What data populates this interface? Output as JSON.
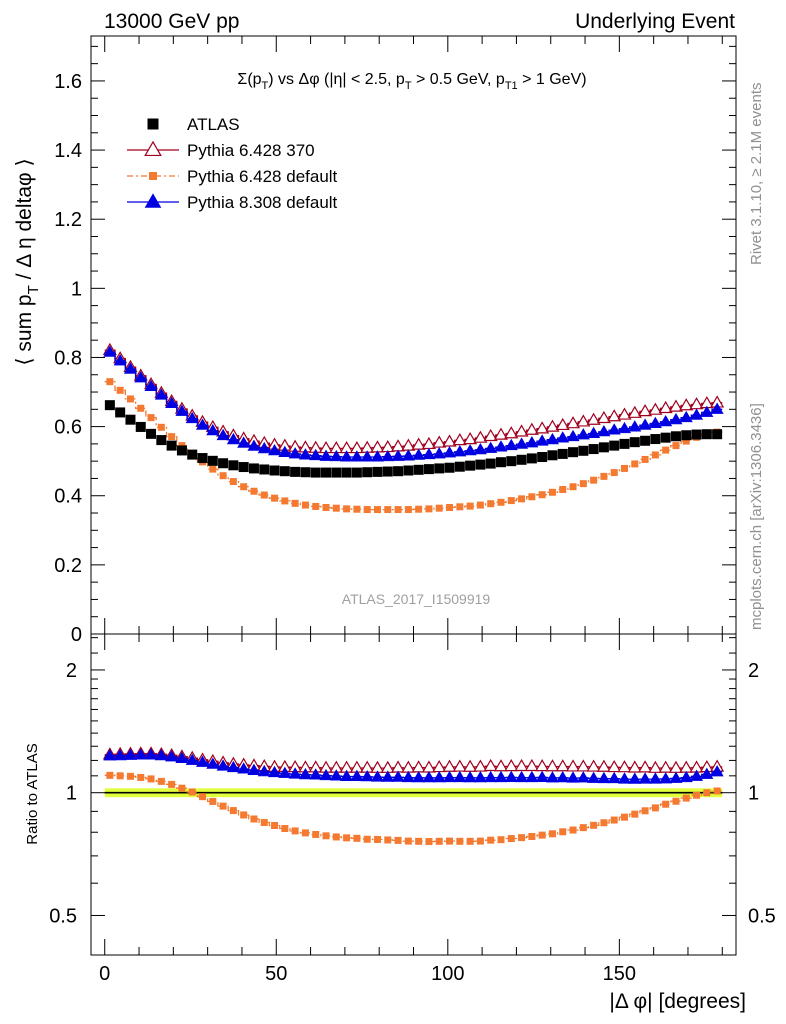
{
  "header": {
    "left": "13000 GeV pp",
    "right": "Underlying Event"
  },
  "side_labels": {
    "rivet": "Rivet 3.1.10, ≥ 2.1M events",
    "mcplots": "mcplots.cern.ch [arXiv:1306.3436]"
  },
  "watermark": "ATLAS_2017_I1509919",
  "chart_data": [
    {
      "type": "scatter",
      "panel": "main",
      "title_parts": [
        "Σ(p",
        "T",
        ") vs Δφ (|η| < 2.5, p",
        "T",
        " > 0.5 GeV, p",
        "T1",
        " > 1 GeV)"
      ],
      "ylabel_parts": [
        "⟨ sum p",
        "T",
        " / Δ η deltaφ ⟩"
      ],
      "xlim": [
        -4,
        184
      ],
      "ylim": [
        0,
        1.73
      ],
      "yticks": [
        0,
        0.2,
        0.4,
        0.6,
        0.8,
        1,
        1.2,
        1.4,
        1.6
      ],
      "ytick_labels": [
        "0",
        "0.2",
        "0.4",
        "0.6",
        "0.8",
        "1",
        "1.2",
        "1.4",
        "1.6"
      ],
      "legend_position": "top-left",
      "x": [
        1.5,
        4.5,
        7.5,
        10.5,
        13.5,
        16.5,
        19.5,
        22.5,
        25.5,
        28.5,
        31.5,
        34.5,
        37.5,
        40.5,
        43.5,
        46.5,
        49.5,
        52.5,
        55.5,
        58.5,
        61.5,
        64.5,
        67.5,
        70.5,
        73.5,
        76.5,
        79.5,
        82.5,
        85.5,
        88.5,
        91.5,
        94.5,
        97.5,
        100.5,
        103.5,
        106.5,
        109.5,
        112.5,
        115.5,
        118.5,
        121.5,
        124.5,
        127.5,
        130.5,
        133.5,
        136.5,
        139.5,
        142.5,
        145.5,
        148.5,
        151.5,
        154.5,
        157.5,
        160.5,
        163.5,
        166.5,
        169.5,
        172.5,
        175.5,
        178.5
      ],
      "series": [
        {
          "name": "ATLAS",
          "marker": "square",
          "color": "#000000",
          "values": [
            0.662,
            0.641,
            0.62,
            0.599,
            0.579,
            0.561,
            0.545,
            0.531,
            0.519,
            0.509,
            0.501,
            0.494,
            0.488,
            0.483,
            0.479,
            0.476,
            0.473,
            0.471,
            0.469,
            0.468,
            0.467,
            0.467,
            0.467,
            0.467,
            0.467,
            0.468,
            0.469,
            0.47,
            0.471,
            0.473,
            0.475,
            0.477,
            0.479,
            0.481,
            0.484,
            0.487,
            0.49,
            0.493,
            0.497,
            0.5,
            0.504,
            0.508,
            0.512,
            0.517,
            0.521,
            0.526,
            0.53,
            0.535,
            0.54,
            0.545,
            0.55,
            0.555,
            0.559,
            0.564,
            0.568,
            0.572,
            0.575,
            0.577,
            0.578,
            0.578
          ]
        },
        {
          "name": "Pythia 6.428 370",
          "marker": "open-triangle",
          "color": "#a0001e",
          "values": [
            0.821,
            0.797,
            0.772,
            0.747,
            0.722,
            0.697,
            0.673,
            0.651,
            0.631,
            0.613,
            0.598,
            0.585,
            0.574,
            0.565,
            0.558,
            0.552,
            0.547,
            0.544,
            0.541,
            0.539,
            0.538,
            0.537,
            0.537,
            0.537,
            0.537,
            0.538,
            0.539,
            0.54,
            0.542,
            0.544,
            0.547,
            0.549,
            0.553,
            0.556,
            0.56,
            0.563,
            0.567,
            0.572,
            0.576,
            0.58,
            0.585,
            0.59,
            0.594,
            0.599,
            0.604,
            0.609,
            0.614,
            0.619,
            0.624,
            0.629,
            0.634,
            0.639,
            0.644,
            0.648,
            0.653,
            0.657,
            0.661,
            0.664,
            0.667,
            0.669
          ]
        },
        {
          "name": "Pythia 6.428 default",
          "marker": "square",
          "color": "#f47a32",
          "values": [
            0.73,
            0.705,
            0.68,
            0.653,
            0.626,
            0.598,
            0.571,
            0.545,
            0.521,
            0.498,
            0.477,
            0.458,
            0.441,
            0.426,
            0.413,
            0.402,
            0.393,
            0.385,
            0.378,
            0.373,
            0.369,
            0.366,
            0.364,
            0.362,
            0.361,
            0.36,
            0.36,
            0.36,
            0.36,
            0.36,
            0.361,
            0.362,
            0.364,
            0.366,
            0.368,
            0.37,
            0.373,
            0.377,
            0.381,
            0.386,
            0.391,
            0.397,
            0.403,
            0.41,
            0.418,
            0.426,
            0.435,
            0.445,
            0.456,
            0.467,
            0.479,
            0.492,
            0.505,
            0.518,
            0.532,
            0.545,
            0.558,
            0.569,
            0.578,
            0.584
          ]
        },
        {
          "name": "Pythia 8.308 default",
          "marker": "triangle",
          "color": "#0000e0",
          "values": [
            0.815,
            0.79,
            0.766,
            0.741,
            0.716,
            0.691,
            0.667,
            0.644,
            0.623,
            0.604,
            0.588,
            0.574,
            0.562,
            0.552,
            0.543,
            0.536,
            0.53,
            0.525,
            0.521,
            0.518,
            0.516,
            0.514,
            0.513,
            0.512,
            0.512,
            0.512,
            0.512,
            0.513,
            0.514,
            0.515,
            0.517,
            0.519,
            0.521,
            0.524,
            0.527,
            0.53,
            0.533,
            0.537,
            0.541,
            0.545,
            0.549,
            0.553,
            0.558,
            0.562,
            0.567,
            0.571,
            0.576,
            0.58,
            0.585,
            0.59,
            0.594,
            0.599,
            0.604,
            0.609,
            0.614,
            0.62,
            0.626,
            0.633,
            0.641,
            0.65
          ]
        }
      ]
    },
    {
      "type": "scatter",
      "panel": "ratio",
      "ylabel": "Ratio to ATLAS",
      "xlabel_parts": [
        "|Δ φ| [degrees]"
      ],
      "xlim": [
        -4,
        184
      ],
      "ylim": [
        0.4,
        2.45
      ],
      "log_y": true,
      "yticks": [
        0.5,
        1,
        2
      ],
      "ytick_labels": [
        "0.5",
        "1",
        "2"
      ],
      "xticks": [
        0,
        50,
        100,
        150
      ],
      "xtick_labels": [
        "0",
        "50",
        "100",
        "150"
      ],
      "reference_band": {
        "low": 0.975,
        "high": 1.025,
        "color": "#e1ff3c"
      },
      "series": [
        {
          "name": "Pythia 6.428 370",
          "marker": "open-triangle",
          "color": "#a0001e",
          "values": [
            1.24,
            1.243,
            1.245,
            1.247,
            1.247,
            1.242,
            1.235,
            1.226,
            1.216,
            1.204,
            1.194,
            1.184,
            1.176,
            1.17,
            1.165,
            1.16,
            1.156,
            1.155,
            1.154,
            1.152,
            1.152,
            1.15,
            1.15,
            1.15,
            1.15,
            1.15,
            1.149,
            1.149,
            1.151,
            1.15,
            1.152,
            1.151,
            1.154,
            1.156,
            1.157,
            1.156,
            1.157,
            1.161,
            1.159,
            1.16,
            1.161,
            1.161,
            1.16,
            1.159,
            1.159,
            1.158,
            1.158,
            1.157,
            1.156,
            1.154,
            1.153,
            1.151,
            1.152,
            1.149,
            1.15,
            1.149,
            1.15,
            1.151,
            1.154,
            1.157
          ]
        },
        {
          "name": "Pythia 6.428 default",
          "marker": "square",
          "color": "#f47a32",
          "values": [
            1.103,
            1.1,
            1.097,
            1.09,
            1.081,
            1.066,
            1.048,
            1.026,
            1.004,
            0.978,
            0.952,
            0.927,
            0.904,
            0.882,
            0.862,
            0.845,
            0.831,
            0.817,
            0.806,
            0.797,
            0.79,
            0.784,
            0.779,
            0.775,
            0.773,
            0.769,
            0.768,
            0.766,
            0.764,
            0.761,
            0.76,
            0.759,
            0.76,
            0.761,
            0.76,
            0.76,
            0.761,
            0.765,
            0.767,
            0.772,
            0.776,
            0.781,
            0.787,
            0.793,
            0.802,
            0.81,
            0.821,
            0.832,
            0.844,
            0.857,
            0.871,
            0.886,
            0.903,
            0.918,
            0.937,
            0.953,
            0.97,
            0.986,
            1.0,
            1.01
          ]
        },
        {
          "name": "Pythia 8.308 default",
          "marker": "triangle",
          "color": "#0000e0",
          "values": [
            1.231,
            1.232,
            1.235,
            1.237,
            1.237,
            1.232,
            1.224,
            1.213,
            1.2,
            1.187,
            1.174,
            1.162,
            1.152,
            1.143,
            1.134,
            1.126,
            1.12,
            1.115,
            1.111,
            1.107,
            1.105,
            1.101,
            1.099,
            1.096,
            1.096,
            1.094,
            1.092,
            1.091,
            1.091,
            1.089,
            1.088,
            1.088,
            1.088,
            1.089,
            1.089,
            1.088,
            1.088,
            1.089,
            1.089,
            1.09,
            1.089,
            1.089,
            1.09,
            1.087,
            1.088,
            1.086,
            1.087,
            1.084,
            1.083,
            1.083,
            1.08,
            1.079,
            1.08,
            1.08,
            1.081,
            1.084,
            1.089,
            1.097,
            1.109,
            1.125
          ]
        }
      ]
    }
  ]
}
